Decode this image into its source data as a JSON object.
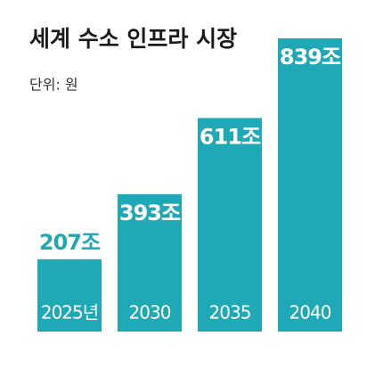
{
  "chart_data": {
    "type": "bar",
    "title": "세계 수소 인프라 시장",
    "subtitle": "단위: 원",
    "categories": [
      "2025년",
      "2030",
      "2035",
      "2040"
    ],
    "values": [
      207,
      393,
      611,
      839
    ],
    "value_labels": [
      "207조",
      "393조",
      "611조",
      "839조"
    ],
    "color": "#1fa8b5"
  }
}
